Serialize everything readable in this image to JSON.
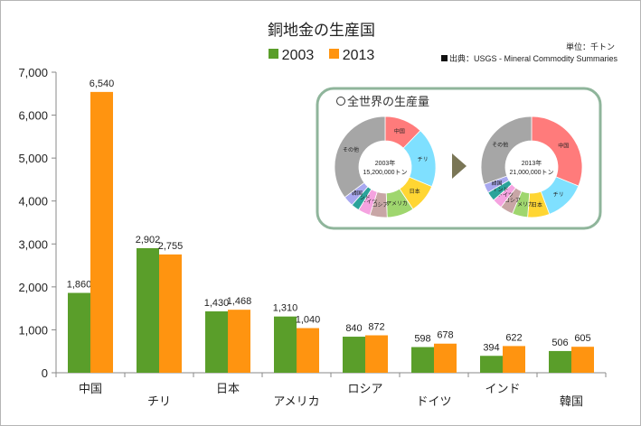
{
  "chart_data": {
    "type": "bar",
    "title": "銅地金の生産国",
    "unit_note": "単位：千トン",
    "source_note": "出典：USGS - Mineral Commodity Summaries",
    "categories": [
      "中国",
      "チリ",
      "日本",
      "アメリカ",
      "ロシア",
      "ドイツ",
      "インド",
      "韓国"
    ],
    "series": [
      {
        "name": "2003",
        "color": "#5a9e2a",
        "values": [
          1860,
          2902,
          1430,
          1310,
          840,
          598,
          394,
          506
        ],
        "labels": [
          "1,860",
          "2,902",
          "1,430",
          "1,310",
          "840",
          "598",
          "394",
          "506"
        ]
      },
      {
        "name": "2013",
        "color": "#ff9410",
        "values": [
          6540,
          2755,
          1468,
          1040,
          872,
          678,
          622,
          605
        ],
        "labels": [
          "6,540",
          "2,755",
          "1,468",
          "1,040",
          "872",
          "678",
          "622",
          "605"
        ]
      }
    ],
    "ylim": [
      0,
      7000
    ],
    "yticks": [
      0,
      1000,
      2000,
      3000,
      4000,
      5000,
      6000,
      7000
    ],
    "ytick_labels": [
      "0",
      "1,000",
      "2,000",
      "3,000",
      "4,000",
      "5,000",
      "6,000",
      "7,000"
    ],
    "grid": false,
    "legend_position": "top-center",
    "inset": {
      "title": "全世界の生産量",
      "type": "pie",
      "charts": [
        {
          "center_label_year": "2003年",
          "center_label_total": "15,200,000トン",
          "slices": [
            {
              "label": "中国",
              "value": 1860,
              "color": "#ff7b7b"
            },
            {
              "label": "チリ",
              "value": 2902,
              "color": "#7fe0ff"
            },
            {
              "label": "日本",
              "value": 1430,
              "color": "#ffd633"
            },
            {
              "label": "アメリカ",
              "value": 1310,
              "color": "#9fd66e"
            },
            {
              "label": "ロシア",
              "value": 840,
              "color": "#c8a6a6"
            },
            {
              "label": "ドイツ",
              "value": 598,
              "color": "#f5a3e0"
            },
            {
              "label": "インド",
              "value": 394,
              "color": "#2aa39a"
            },
            {
              "label": "韓国",
              "value": 506,
              "color": "#a8a8f0"
            },
            {
              "label": "その他",
              "value": 5360,
              "color": "#a6a6a6"
            }
          ]
        },
        {
          "center_label_year": "2013年",
          "center_label_total": "21,000,000トン",
          "slices": [
            {
              "label": "中国",
              "value": 6540,
              "color": "#ff7b7b"
            },
            {
              "label": "チリ",
              "value": 2755,
              "color": "#7fe0ff"
            },
            {
              "label": "日本",
              "value": 1468,
              "color": "#ffd633"
            },
            {
              "label": "アメリカ",
              "value": 1040,
              "color": "#9fd66e"
            },
            {
              "label": "ロシア",
              "value": 872,
              "color": "#c8a6a6"
            },
            {
              "label": "ドイツ",
              "value": 678,
              "color": "#f5a3e0"
            },
            {
              "label": "インド",
              "value": 622,
              "color": "#2aa39a"
            },
            {
              "label": "韓国",
              "value": 605,
              "color": "#a8a8f0"
            },
            {
              "label": "その他",
              "value": 6420,
              "color": "#a6a6a6"
            }
          ]
        }
      ]
    }
  }
}
